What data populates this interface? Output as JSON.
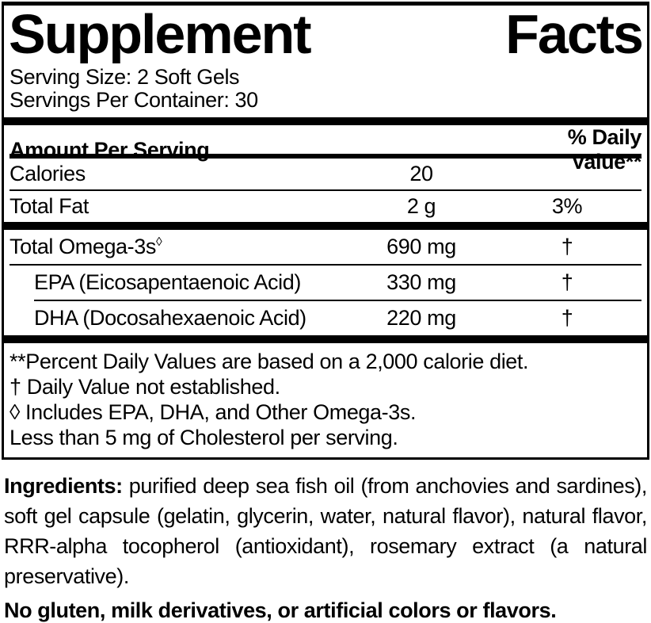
{
  "colors": {
    "text": "#000000",
    "background": "#ffffff",
    "rule": "#000000"
  },
  "supplement_facts": {
    "title_word_1": "Supplement",
    "title_word_2": "Facts",
    "serving_size": "Serving Size: 2 Soft Gels",
    "servings_per_container": "Servings Per Container: 30",
    "columns": {
      "amount_header": "Amount Per Serving",
      "dv_header": "% Daily Value**"
    },
    "rows": [
      {
        "name": "Calories",
        "amount": "20",
        "dv": ""
      },
      {
        "name": "Total Fat",
        "amount": "2 g",
        "dv": "3%"
      },
      {
        "name": "Total Omega-3s",
        "marker": "◊",
        "amount": "690 mg",
        "dv": "†"
      },
      {
        "name": "EPA (Eicosapentaenoic Acid)",
        "amount": "330 mg",
        "dv": "†"
      },
      {
        "name": "DHA (Docosahexaenoic Acid)",
        "amount": "220 mg",
        "dv": "†"
      }
    ],
    "footnotes": [
      "**Percent Daily Values are based on a 2,000 calorie diet.",
      "† Daily Value not established.",
      "◊ Includes EPA, DHA, and Other Omega-3s.",
      "Less than 5 mg of Cholesterol per serving."
    ]
  },
  "ingredients": {
    "label": "Ingredients:",
    "text": " purified deep sea fish oil (from anchovies and sardines), soft gel capsule (gelatin, glycerin, water, natural flavor), natural flavor, RRR-alpha tocopherol (antioxidant), rosemary extract (a natural preservative)."
  },
  "claim": "No gluten, milk derivatives, or artificial colors or flavors."
}
